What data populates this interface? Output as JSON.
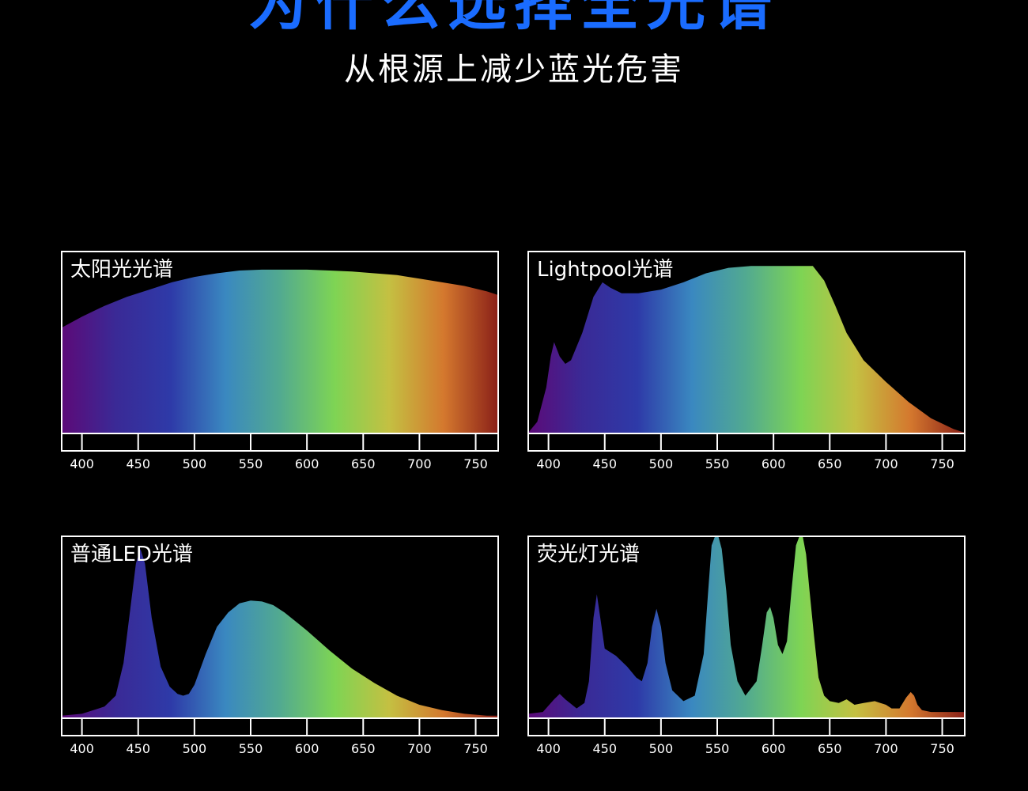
{
  "header": {
    "title": "为什么选择全光谱",
    "subtitle": "从根源上减少蓝光危害"
  },
  "colors": {
    "background": "#000000",
    "title": "#1a6cff",
    "frame": "#ffffff",
    "spectrum_stops": [
      "#5c0a78",
      "#3a2a96",
      "#2e3aa8",
      "#3a88c0",
      "#52aa90",
      "#7ed454",
      "#c4c042",
      "#d4782e",
      "#8a2018"
    ]
  },
  "chart_data": [
    {
      "type": "area",
      "title": "太阳光光谱",
      "xlim": [
        382,
        770
      ],
      "ylim": [
        0,
        1
      ],
      "xticks": [
        400,
        450,
        500,
        550,
        600,
        650,
        700,
        750
      ],
      "x": [
        382,
        400,
        420,
        440,
        460,
        480,
        500,
        520,
        540,
        560,
        580,
        600,
        620,
        640,
        660,
        680,
        700,
        720,
        740,
        760,
        770
      ],
      "values": [
        0.58,
        0.64,
        0.7,
        0.75,
        0.79,
        0.83,
        0.86,
        0.88,
        0.895,
        0.9,
        0.9,
        0.9,
        0.895,
        0.89,
        0.88,
        0.87,
        0.85,
        0.83,
        0.81,
        0.78,
        0.76
      ]
    },
    {
      "type": "area",
      "title": "Lightpool光谱",
      "xlim": [
        382,
        770
      ],
      "ylim": [
        0,
        1
      ],
      "xticks": [
        400,
        450,
        500,
        550,
        600,
        650,
        700,
        750
      ],
      "x": [
        382,
        390,
        398,
        402,
        405,
        410,
        415,
        420,
        430,
        440,
        448,
        455,
        465,
        480,
        500,
        520,
        540,
        560,
        580,
        600,
        620,
        635,
        645,
        655,
        665,
        680,
        700,
        720,
        740,
        760,
        770
      ],
      "values": [
        0.0,
        0.06,
        0.25,
        0.42,
        0.5,
        0.42,
        0.38,
        0.4,
        0.55,
        0.75,
        0.83,
        0.8,
        0.77,
        0.77,
        0.79,
        0.83,
        0.88,
        0.91,
        0.92,
        0.92,
        0.92,
        0.92,
        0.84,
        0.7,
        0.55,
        0.4,
        0.28,
        0.17,
        0.08,
        0.02,
        0.0
      ]
    },
    {
      "type": "area",
      "title": "普通LED光谱",
      "xlim": [
        382,
        770
      ],
      "ylim": [
        0,
        1
      ],
      "xticks": [
        400,
        450,
        500,
        550,
        600,
        650,
        700,
        750
      ],
      "x": [
        382,
        400,
        420,
        430,
        437,
        443,
        448,
        452,
        456,
        462,
        470,
        478,
        485,
        490,
        495,
        500,
        510,
        520,
        530,
        540,
        550,
        560,
        570,
        580,
        600,
        620,
        640,
        660,
        680,
        700,
        720,
        740,
        760,
        770
      ],
      "values": [
        0.01,
        0.02,
        0.06,
        0.12,
        0.3,
        0.6,
        0.85,
        0.93,
        0.85,
        0.55,
        0.28,
        0.17,
        0.13,
        0.12,
        0.13,
        0.18,
        0.35,
        0.5,
        0.58,
        0.63,
        0.645,
        0.64,
        0.62,
        0.58,
        0.48,
        0.37,
        0.27,
        0.19,
        0.12,
        0.07,
        0.04,
        0.02,
        0.01,
        0.01
      ]
    },
    {
      "type": "area",
      "title": "荧光灯光谱",
      "xlim": [
        382,
        770
      ],
      "ylim": [
        0,
        1
      ],
      "xticks": [
        400,
        450,
        500,
        550,
        600,
        650,
        700,
        750
      ],
      "x": [
        382,
        395,
        405,
        410,
        415,
        425,
        432,
        436,
        440,
        443,
        446,
        450,
        460,
        470,
        478,
        483,
        488,
        492,
        496,
        500,
        504,
        510,
        520,
        530,
        538,
        542,
        545,
        548,
        551,
        554,
        558,
        562,
        568,
        575,
        585,
        590,
        594,
        597,
        600,
        604,
        608,
        612,
        616,
        620,
        623,
        626,
        629,
        632,
        636,
        640,
        645,
        650,
        658,
        665,
        672,
        680,
        690,
        695,
        700,
        705,
        712,
        718,
        722,
        725,
        728,
        732,
        740,
        760,
        770
      ],
      "values": [
        0.02,
        0.03,
        0.1,
        0.13,
        0.1,
        0.05,
        0.08,
        0.2,
        0.55,
        0.68,
        0.55,
        0.38,
        0.34,
        0.28,
        0.22,
        0.2,
        0.3,
        0.5,
        0.6,
        0.5,
        0.3,
        0.15,
        0.09,
        0.12,
        0.35,
        0.7,
        0.95,
        1.0,
        1.0,
        0.93,
        0.7,
        0.4,
        0.2,
        0.12,
        0.2,
        0.4,
        0.58,
        0.61,
        0.55,
        0.4,
        0.35,
        0.42,
        0.7,
        0.95,
        1.0,
        1.0,
        0.9,
        0.7,
        0.45,
        0.22,
        0.12,
        0.09,
        0.08,
        0.1,
        0.07,
        0.08,
        0.09,
        0.08,
        0.07,
        0.05,
        0.05,
        0.11,
        0.14,
        0.12,
        0.07,
        0.04,
        0.03,
        0.03,
        0.03
      ]
    }
  ]
}
